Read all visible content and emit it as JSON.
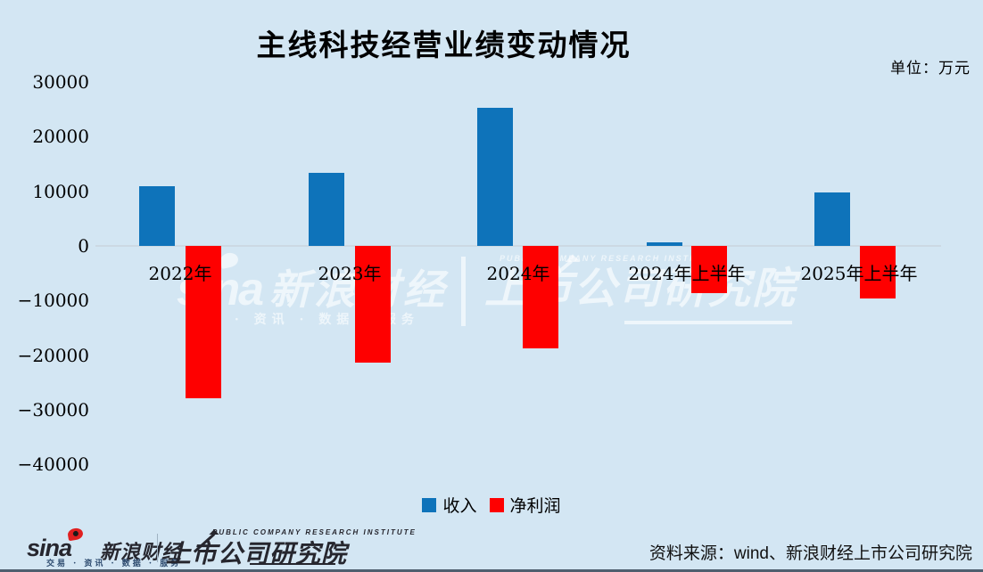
{
  "title": "主线科技经营业绩变动情况",
  "unit_label": "单位：万元",
  "branding": {
    "sina_en": "sina",
    "sina_cn": "新浪财经",
    "services": "交易 · 资讯 · 数据 · 服务",
    "institute_en": "PUBLIC COMPANY RESEARCH INSTITUTE",
    "institute_cn": "上市公司研究院"
  },
  "footer": {
    "source": "资料来源：wind、新浪财经上市公司研究院"
  },
  "colors": {
    "background": "#d3e6f3",
    "revenue_blue": "#0e73ba",
    "net_profit_red": "#fe0000",
    "zero_line": "#ccd9e3"
  },
  "chart_data": {
    "type": "bar",
    "title": "主线科技经营业绩变动情况",
    "unit": "万元",
    "categories": [
      "2022年",
      "2023年",
      "2024年",
      "2024年上半年",
      "2025年上半年"
    ],
    "series": [
      {
        "name": "收入",
        "color": "#0e73ba",
        "values": [
          11000,
          13300,
          25300,
          700,
          9800
        ]
      },
      {
        "name": "净利润",
        "color": "#fe0000",
        "values": [
          -27900,
          -21400,
          -18700,
          -8700,
          -9700
        ]
      }
    ],
    "ylim": [
      -40000,
      30000
    ],
    "yticks": [
      30000,
      20000,
      10000,
      0,
      -10000,
      -20000,
      -30000,
      -40000
    ],
    "grid": false,
    "legend_position": "bottom"
  }
}
